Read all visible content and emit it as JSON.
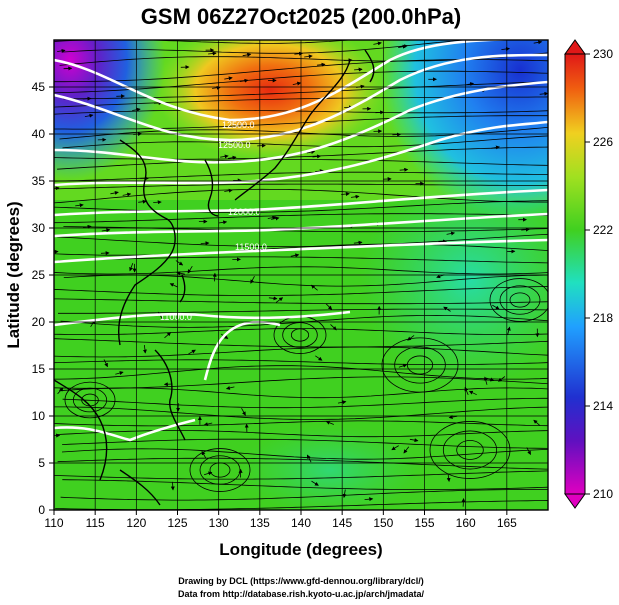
{
  "title": "GSM 06Z27Oct2025 (200.0hPa)",
  "x_axis": {
    "label": "Longitude (degrees)",
    "range": [
      110,
      170
    ],
    "ticks": [
      "110",
      "115",
      "120",
      "125",
      "130",
      "135",
      "140",
      "145",
      "150",
      "155",
      "160",
      "165"
    ]
  },
  "y_axis": {
    "label": "Latitude  (degrees)",
    "range": [
      0,
      50
    ],
    "ticks": [
      "0",
      "5",
      "10",
      "15",
      "20",
      "25",
      "30",
      "35",
      "40",
      "45"
    ]
  },
  "colorbar": {
    "range": [
      210,
      230
    ],
    "ticks": [
      "210",
      "214",
      "218",
      "222",
      "226",
      "230"
    ],
    "colors": [
      "#e000c0",
      "#2030d0",
      "#20a0ff",
      "#20e0c0",
      "#40d020",
      "#a0e020",
      "#f0d020",
      "#f06010",
      "#e01818"
    ]
  },
  "contour_labels": [
    "12500.0",
    "12000.0",
    "11500.0",
    "11000.0"
  ],
  "credit_lines": [
    "Drawing by DCL (https://www.gfd-dennou.org/library/dcl/)",
    "Data from http://database.rish.kyoto-u.ac.jp/arch/jmadata/"
  ],
  "map_data": {
    "field": "temperature (K) with streamlines and geopotential height contours",
    "level": "200.0hPa",
    "warm_maximum": {
      "lon": 135,
      "lat": 46,
      "value": 228
    },
    "cold_areas": [
      {
        "lon": 111,
        "lat": 47,
        "value": 211
      },
      {
        "lon": 166,
        "lat": 45,
        "value": 215
      }
    ]
  }
}
